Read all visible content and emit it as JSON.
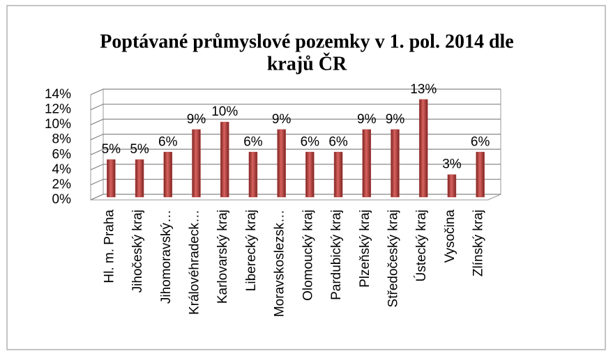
{
  "chart_data": {
    "type": "bar",
    "title_lines": [
      "Poptávané průmyslové pozemky v 1. pol. 2014 dle",
      "krajů ČR"
    ],
    "categories": [
      "Hl. m. Praha",
      "Jihočeský kraj",
      "Jihomoravský…",
      "Královéhradeck…",
      "Karlovarský kraj",
      "Liberecký kraj",
      "Moravskoslezsk…",
      "Olomoucký kraj",
      "Pardubický kraj",
      "Plzeňský kraj",
      "Středočeský kraj",
      "Ústecký kraj",
      "Vysočina",
      "Zlínský kraj"
    ],
    "values": [
      5,
      5,
      6,
      9,
      10,
      6,
      9,
      6,
      6,
      9,
      9,
      13,
      3,
      6
    ],
    "value_labels": [
      "5%",
      "5%",
      "6%",
      "9%",
      "10%",
      "6%",
      "9%",
      "6%",
      "6%",
      "9%",
      "9%",
      "13%",
      "3%",
      "6%"
    ],
    "color": "#c0504d",
    "ylim": [
      0,
      14
    ],
    "yticks": [
      {
        "value": 0,
        "label": "0%"
      },
      {
        "value": 2,
        "label": "2%"
      },
      {
        "value": 4,
        "label": "4%"
      },
      {
        "value": 6,
        "label": "6%"
      },
      {
        "value": 8,
        "label": "8%"
      },
      {
        "value": 10,
        "label": "10%"
      },
      {
        "value": 12,
        "label": "12%"
      },
      {
        "value": 14,
        "label": "14%"
      }
    ],
    "grid": true
  }
}
